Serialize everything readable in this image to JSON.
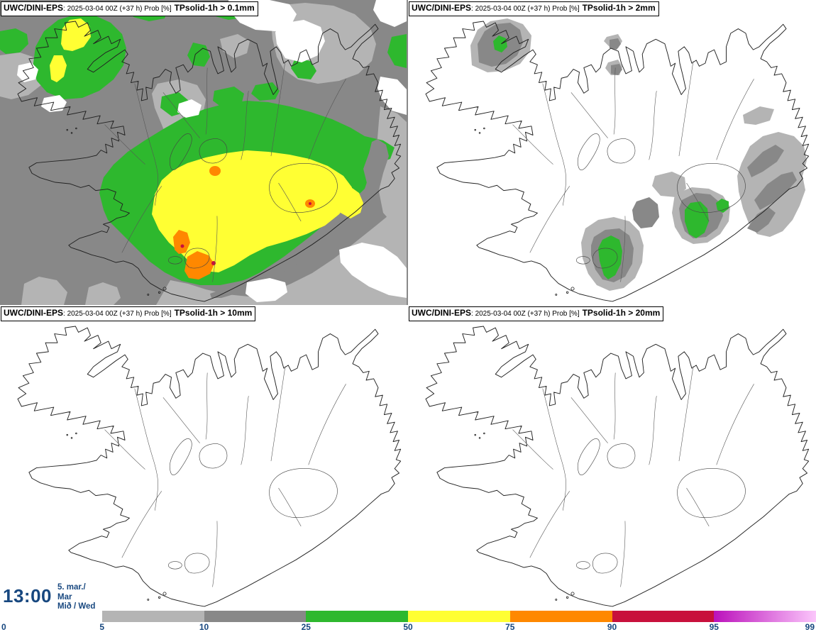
{
  "panels": [
    {
      "product": "UWC/DINI-EPS",
      "separator": ": ",
      "run_info": "2025-03-04 00Z (+37 h) Prob [%]",
      "threshold": "TPsolid-1h > 0.1mm"
    },
    {
      "product": "UWC/DINI-EPS",
      "separator": ": ",
      "run_info": "2025-03-04 00Z (+37 h) Prob [%]",
      "threshold": "TPsolid-1h > 2mm"
    },
    {
      "product": "UWC/DINI-EPS",
      "separator": ": ",
      "run_info": "2025-03-04 00Z (+37 h) Prob [%]",
      "threshold": "TPsolid-1h > 10mm"
    },
    {
      "product": "UWC/DINI-EPS",
      "separator": ": ",
      "run_info": "2025-03-04 00Z (+37 h) Prob [%]",
      "threshold": "TPsolid-1h > 20mm"
    }
  ],
  "time_selector": {
    "time": "13:00",
    "date_lines": [
      "5. mar./",
      "Mar",
      "Mið / Wed"
    ]
  },
  "colorbar": {
    "tick_labels": [
      "0",
      "5",
      "10",
      "25",
      "50",
      "75",
      "90",
      "95",
      "99"
    ],
    "segments": [
      {
        "range": "5-10",
        "color": "#b4b4b4"
      },
      {
        "range": "10-25",
        "color": "#888888"
      },
      {
        "range": "25-50",
        "color": "#2eb82e"
      },
      {
        "range": "50-75",
        "color": "#ffff33"
      },
      {
        "range": "75-90",
        "color": "#ff8800"
      },
      {
        "range": "90-95",
        "color": "#c8103c"
      },
      {
        "range": "95-99",
        "color": "#bb11bb",
        "color_end": "#fbc6fb"
      }
    ],
    "text_color": "#17477f"
  },
  "palette": {
    "p5": "#b4b4b4",
    "p10": "#888888",
    "p25": "#2eb82e",
    "p50": "#ffff33",
    "p75": "#ff8800",
    "p90": "#c8103c",
    "p95": "#bb11bb",
    "p95_end": "#fbc6fb",
    "label_navy": "#17477f"
  },
  "map": {
    "region": "Iceland"
  }
}
